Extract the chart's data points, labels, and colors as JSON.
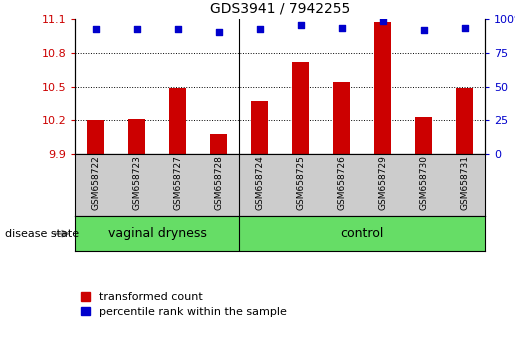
{
  "title": "GDS3941 / 7942255",
  "samples": [
    "GSM658722",
    "GSM658723",
    "GSM658727",
    "GSM658728",
    "GSM658724",
    "GSM658725",
    "GSM658726",
    "GSM658729",
    "GSM658730",
    "GSM658731"
  ],
  "red_values": [
    10.2,
    10.21,
    10.49,
    10.08,
    10.37,
    10.72,
    10.54,
    11.08,
    10.23,
    10.49
  ],
  "blue_values": [
    93,
    93,
    93,
    91,
    93,
    96,
    94,
    99,
    92,
    94
  ],
  "group_split": 4,
  "group_labels": [
    "vaginal dryness",
    "control"
  ],
  "ylim_left": [
    9.9,
    11.1
  ],
  "ylim_right": [
    0,
    100
  ],
  "yticks_left": [
    9.9,
    10.2,
    10.5,
    10.8,
    11.1
  ],
  "yticks_right": [
    0,
    25,
    50,
    75,
    100
  ],
  "bar_color": "#CC0000",
  "dot_color": "#0000CC",
  "tick_label_area_color": "#cccccc",
  "disease_bar_color": "#66DD66",
  "legend_red_label": "transformed count",
  "legend_blue_label": "percentile rank within the sample",
  "disease_state_label": "disease state",
  "base_value": 9.9,
  "bar_width": 0.4
}
